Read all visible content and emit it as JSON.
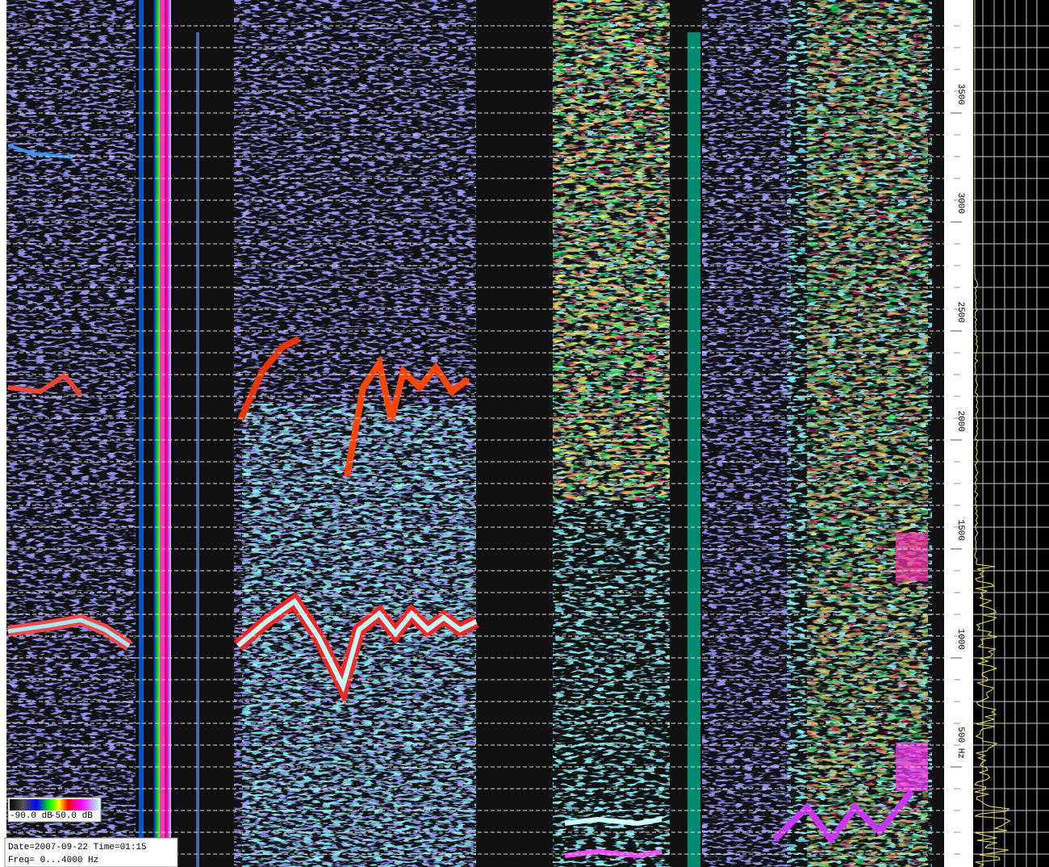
{
  "chart_data": {
    "type": "spectrogram",
    "ylim": [
      0,
      4000
    ],
    "yticks": [
      {
        "value": 500,
        "label": "500 Hz"
      },
      1000,
      1500,
      2000,
      2500,
      3000,
      3500
    ],
    "grid": true,
    "colorbar_ticks": [
      {
        "value": -90,
        "label": "-90.0 dB"
      },
      {
        "value": -50,
        "label": "-50.0 dB"
      }
    ],
    "annotations": [
      "Date=2007-09-22 Time=01:15",
      "Freq= 0...4000 Hz"
    ]
  }
}
